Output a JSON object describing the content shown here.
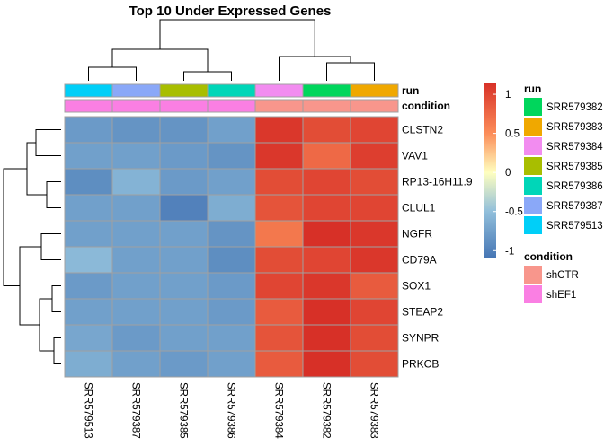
{
  "chart_data": {
    "type": "heatmap",
    "title": "Top 10 Under Expressed Genes",
    "columns": [
      "SRR579513",
      "SRR579387",
      "SRR579385",
      "SRR579386",
      "SRR579384",
      "SRR579382",
      "SRR579383"
    ],
    "rows": [
      "CLSTN2",
      "VAV1",
      "RP13-16H11.9",
      "CLUL1",
      "NGFR",
      "CD79A",
      "SOX1",
      "STEAP2",
      "SYNPR",
      "PRKCB"
    ],
    "values": [
      [
        -0.8,
        -0.85,
        -0.85,
        -0.75,
        1.1,
        0.95,
        1.0
      ],
      [
        -0.75,
        -0.75,
        -0.8,
        -0.85,
        1.1,
        0.75,
        1.05
      ],
      [
        -0.9,
        -0.6,
        -0.8,
        -0.75,
        0.95,
        1.0,
        0.95
      ],
      [
        -0.75,
        -0.75,
        -1.0,
        -0.65,
        0.9,
        1.0,
        1.0
      ],
      [
        -0.75,
        -0.75,
        -0.75,
        -0.85,
        0.65,
        1.15,
        1.1
      ],
      [
        -0.55,
        -0.75,
        -0.75,
        -0.9,
        0.95,
        1.0,
        1.1
      ],
      [
        -0.8,
        -0.75,
        -0.75,
        -0.8,
        1.0,
        1.1,
        0.85
      ],
      [
        -0.75,
        -0.75,
        -0.75,
        -0.8,
        0.85,
        1.15,
        1.0
      ],
      [
        -0.7,
        -0.8,
        -0.75,
        -0.75,
        0.9,
        1.15,
        0.95
      ],
      [
        -0.65,
        -0.75,
        -0.8,
        -0.75,
        0.85,
        1.15,
        0.95
      ]
    ],
    "color_scale": {
      "stops": [
        {
          "value": -1.1,
          "color": "#4575B4"
        },
        {
          "value": -0.5,
          "color": "#91BFDB"
        },
        {
          "value": 0,
          "color": "#FFFFBF"
        },
        {
          "value": 0.5,
          "color": "#FC8D59"
        },
        {
          "value": 1.15,
          "color": "#D73027"
        }
      ],
      "ticks": [
        "1",
        "0.5",
        "0",
        "-0.5",
        "-1"
      ]
    },
    "annotations": [
      {
        "name": "run",
        "column_values": [
          "SRR579513",
          "SRR579387",
          "SRR579385",
          "SRR579386",
          "SRR579384",
          "SRR579382",
          "SRR579383"
        ],
        "legend": [
          {
            "label": "SRR579382",
            "color": "#00D65C"
          },
          {
            "label": "SRR579383",
            "color": "#F0A800"
          },
          {
            "label": "SRR579384",
            "color": "#F28CF0"
          },
          {
            "label": "SRR579385",
            "color": "#A8BE00"
          },
          {
            "label": "SRR579386",
            "color": "#00D6B8"
          },
          {
            "label": "SRR579387",
            "color": "#8AA8F8"
          },
          {
            "label": "SRR579513",
            "color": "#00CFF8"
          }
        ]
      },
      {
        "name": "condition",
        "column_values": [
          "shEF1",
          "shEF1",
          "shEF1",
          "shEF1",
          "shCTR",
          "shCTR",
          "shCTR"
        ],
        "legend": [
          {
            "label": "shCTR",
            "color": "#F8968C"
          },
          {
            "label": "shEF1",
            "color": "#FA7FE3"
          }
        ]
      }
    ],
    "cell_border_color": "#A0A0A0"
  }
}
